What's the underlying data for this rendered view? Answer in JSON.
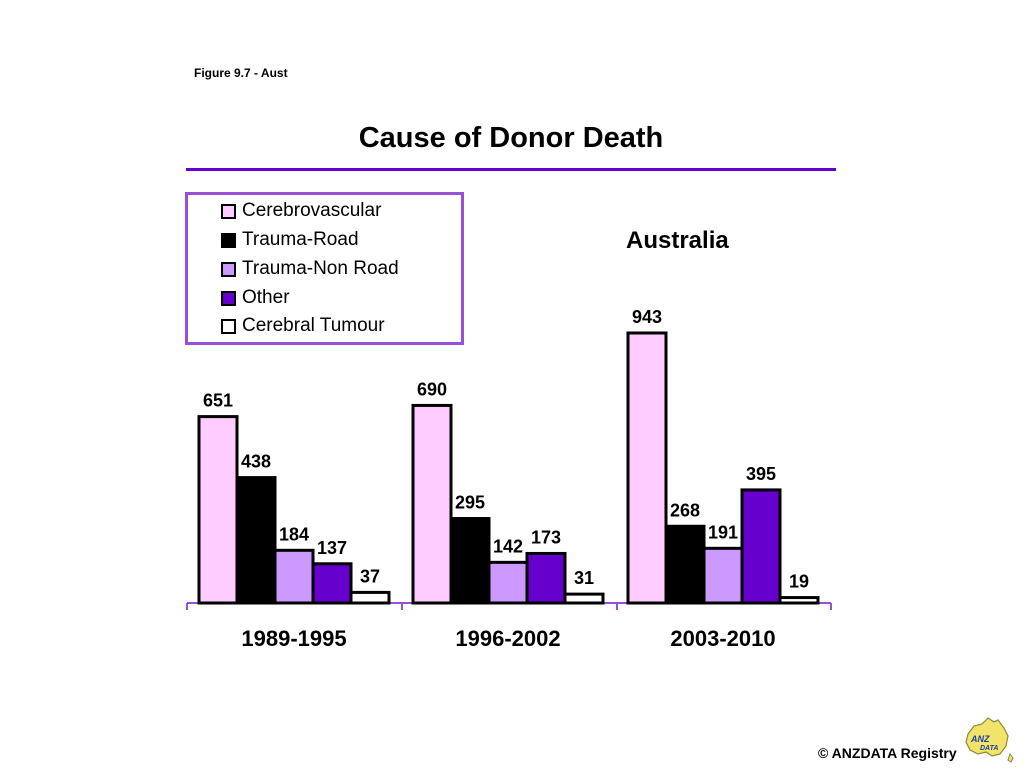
{
  "figure_label": "Figure 9.7 - Aust",
  "copyright": "© ANZDATA Registry",
  "logo": {
    "text": "ANZDATA"
  },
  "colors": {
    "accent": "#6600cc",
    "legend_border": "#9b4fd8",
    "cerebrovascular": "#ffccff",
    "trauma_road": "#000000",
    "trauma_non_road": "#cc99ff",
    "other": "#6600cc",
    "cerebral_tumour": "#ffffff"
  },
  "chart_data": {
    "type": "bar",
    "title": "Cause of Donor Death",
    "annotation": "Australia",
    "xlabel": "",
    "ylabel": "",
    "ylim": [
      0,
      943
    ],
    "grid": false,
    "legend_position": "top-left",
    "categories": [
      "1989-1995",
      "1996-2002",
      "2003-2010"
    ],
    "series": [
      {
        "name": "Cerebrovascular",
        "values": [
          651,
          690,
          943
        ],
        "color": "#ffccff"
      },
      {
        "name": "Trauma-Road",
        "values": [
          438,
          295,
          268
        ],
        "color": "#000000"
      },
      {
        "name": "Trauma-Non Road",
        "values": [
          184,
          142,
          191
        ],
        "color": "#cc99ff"
      },
      {
        "name": "Other",
        "values": [
          137,
          173,
          395
        ],
        "color": "#6600cc"
      },
      {
        "name": "Cerebral Tumour",
        "values": [
          37,
          31,
          19
        ],
        "color": "#ffffff"
      }
    ]
  }
}
